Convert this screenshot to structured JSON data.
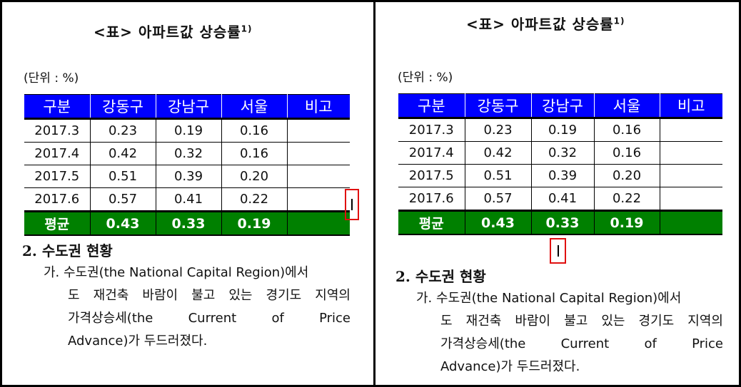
{
  "doc": {
    "title": "<표> 아파트값 상승률",
    "title_note": "1)",
    "unit": "(단위 : %)",
    "table": {
      "headers": [
        "구분",
        "강동구",
        "강남구",
        "서울",
        "비고"
      ],
      "rows": [
        [
          "2017.3",
          "0.23",
          "0.19",
          "0.16",
          ""
        ],
        [
          "2017.4",
          "0.42",
          "0.32",
          "0.16",
          ""
        ],
        [
          "2017.5",
          "0.51",
          "0.39",
          "0.20",
          ""
        ],
        [
          "2017.6",
          "0.57",
          "0.41",
          "0.22",
          ""
        ]
      ],
      "average": [
        "평균",
        "0.43",
        "0.33",
        "0.19",
        ""
      ]
    },
    "section_heading": "2. 수도권 현황",
    "para_line1": "가. 수도권(the National Capital Region)에서",
    "para_line2": "도 재건축 바람이 불고 있는 경기도 지역의",
    "para_line3": "가격상승세(the Current of Price",
    "para_line4": "Advance)가 두드러졌다.",
    "colors": {
      "header_bg": "#0000ff",
      "average_bg": "#008000",
      "highlight": "#e01010"
    }
  }
}
